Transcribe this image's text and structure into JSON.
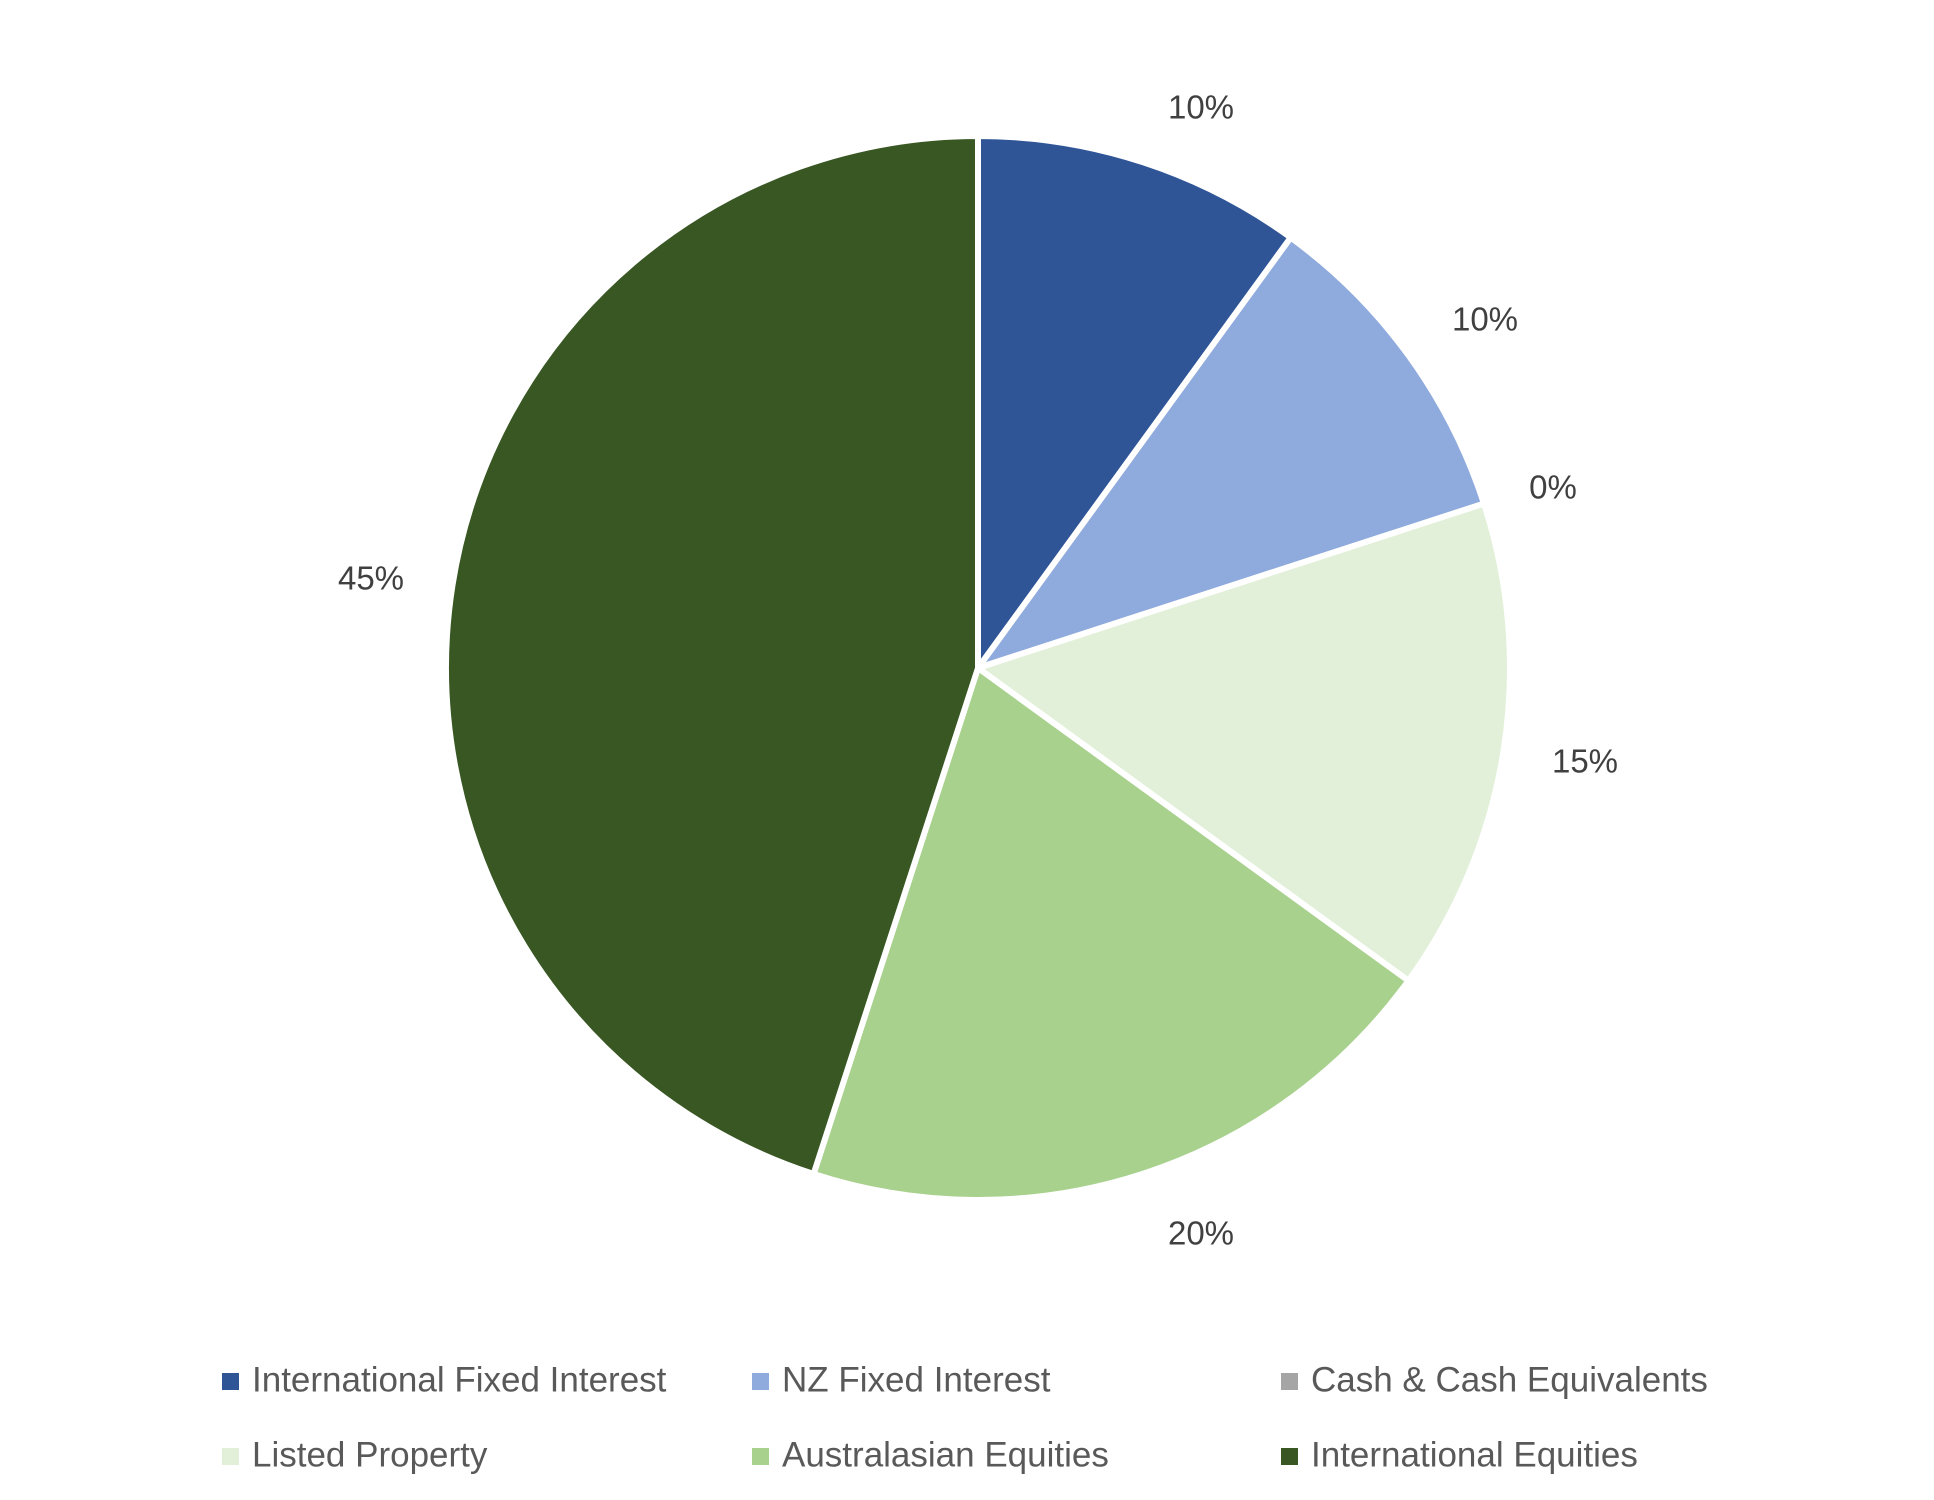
{
  "chart_data": {
    "type": "pie",
    "title": "",
    "start_angle_deg": 0,
    "direction": "clockwise",
    "legend_position": "bottom",
    "slices": [
      {
        "label": "International Fixed Interest",
        "value": 10,
        "display": "10%",
        "color": "#2F5597"
      },
      {
        "label": "NZ Fixed Interest",
        "value": 10,
        "display": "10%",
        "color": "#8FAADC"
      },
      {
        "label": "Cash & Cash Equivalents",
        "value": 0,
        "display": "0%",
        "color": "#A5A5A5"
      },
      {
        "label": "Listed Property",
        "value": 15,
        "display": "15%",
        "color": "#E2F0D9"
      },
      {
        "label": "Australasian Equities",
        "value": 20,
        "display": "20%",
        "color": "#A9D18E"
      },
      {
        "label": "International Equities",
        "value": 45,
        "display": "45%",
        "color": "#385723"
      }
    ]
  }
}
